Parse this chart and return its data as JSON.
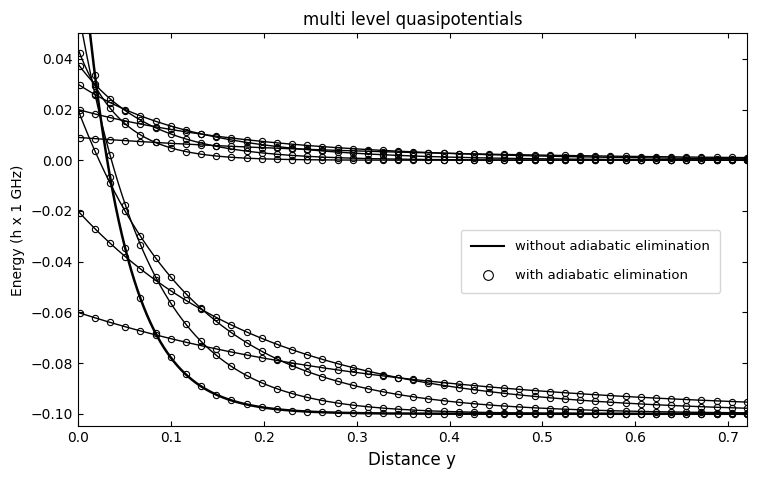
{
  "title": "multi level quasipotentials",
  "xlabel": "Distance y",
  "ylabel": "Energy (h x 1 GHz)",
  "xlim": [
    0,
    0.72
  ],
  "ylim": [
    -0.105,
    0.05
  ],
  "yticks": [
    -0.1,
    -0.08,
    -0.06,
    -0.04,
    -0.02,
    0.0,
    0.02,
    0.04
  ],
  "xticks": [
    0.0,
    0.1,
    0.2,
    0.3,
    0.4,
    0.5,
    0.6,
    0.7
  ],
  "legend_line_label": "without adiabatic elimination",
  "legend_circle_label": "with adiabatic elimination",
  "background_color": "#ffffff",
  "curve_color": "#000000",
  "curves_upper": [
    {
      "asym": 0.0,
      "amp": 0.044,
      "k": 22.0,
      "bold": false
    },
    {
      "asym": 0.0,
      "amp": 0.038,
      "k": 13.0,
      "bold": false
    },
    {
      "asym": 0.0,
      "amp": 0.03,
      "k": 8.0,
      "bold": false
    },
    {
      "asym": 0.0,
      "amp": 0.02,
      "k": 5.0,
      "bold": false
    },
    {
      "asym": 0.0,
      "amp": 0.009,
      "k": 3.0,
      "bold": false
    }
  ],
  "curves_lower": [
    {
      "asym": -0.1,
      "amp": 0.2,
      "k": 22.0,
      "bold": true
    },
    {
      "asym": -0.1,
      "amp": 0.16,
      "k": 13.0,
      "bold": false
    },
    {
      "asym": -0.1,
      "amp": 0.12,
      "k": 8.0,
      "bold": false
    },
    {
      "asym": -0.1,
      "amp": 0.08,
      "k": 5.0,
      "bold": false
    },
    {
      "asym": -0.1,
      "amp": 0.04,
      "k": 3.0,
      "bold": false
    }
  ],
  "n_circles": 45,
  "circle_size": 4.5,
  "linewidth_solid": 1.0,
  "linewidth_bold": 1.8
}
